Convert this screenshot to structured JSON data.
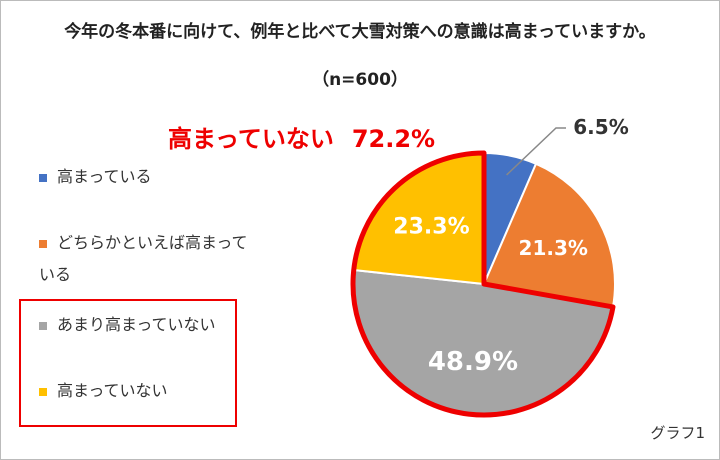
{
  "chart_data": {
    "type": "pie",
    "title": "今年の冬本番に向けて、例年と比べて大雪対策への意識は高まっていますか。",
    "subtitle": "（n=600）",
    "annotation": {
      "label": "高まっていない",
      "value": "72.2%"
    },
    "categories": [
      "高まっている",
      "どちらかといえば高まっている",
      "あまり高まっていない",
      "高まっていない"
    ],
    "values": [
      6.5,
      21.3,
      48.9,
      23.3
    ],
    "labels": [
      "6.5%",
      "21.3%",
      "48.9%",
      "23.3%"
    ],
    "colors": [
      "#4472C4",
      "#ED7D31",
      "#A5A5A5",
      "#FFC000"
    ],
    "highlight_color": "#EE0000",
    "legend_position": "left",
    "note": "グラフ1"
  }
}
